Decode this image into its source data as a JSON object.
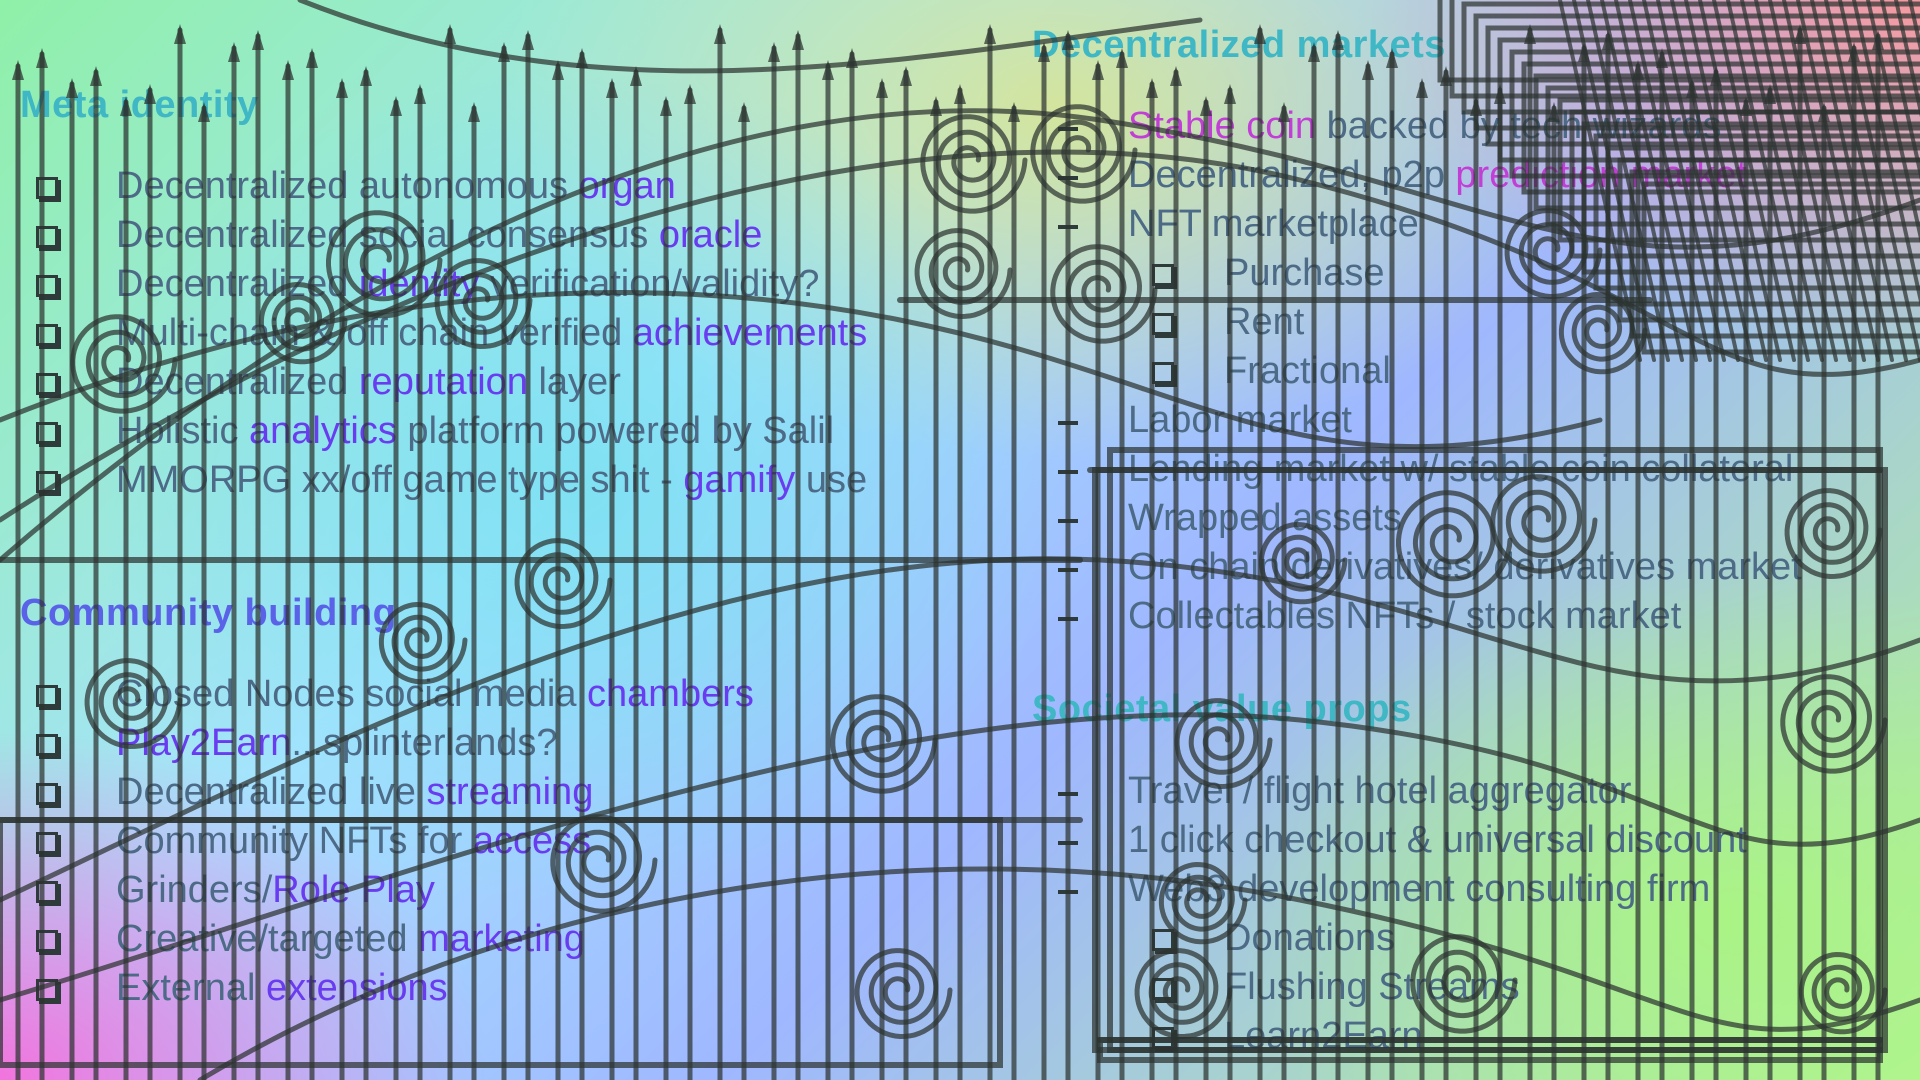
{
  "sections": {
    "meta_identity": {
      "title": "Meta identity",
      "items": [
        {
          "pre": "Decentralized autonomous ",
          "accent": "organ"
        },
        {
          "pre": "Decentralized social consensus ",
          "accent": "oracle"
        },
        {
          "pre": "Decentralized ",
          "accent": "identity",
          "post": " verification/validity?"
        },
        {
          "pre": "Multi-chain & off chain verified ",
          "accent": "achievements"
        },
        {
          "pre": "Decentralized ",
          "accent": "reputation",
          "post": " layer"
        },
        {
          "pre": "Holistic ",
          "accent": "analytics",
          "post": " platform powered by Salil"
        },
        {
          "pre": "MMORPG xx/off game type shit - ",
          "accent": "gamify",
          "post": " use"
        }
      ]
    },
    "community_building": {
      "title": "Community building",
      "items": [
        {
          "pre": "Closed Nodes social media ",
          "accent": "chambers"
        },
        {
          "pre": "",
          "accent": "Play2Earn",
          "post": "...splinterlands?"
        },
        {
          "pre": "Decentralized live ",
          "accent": "streaming"
        },
        {
          "pre": "Community NFTs for ",
          "accent": "access"
        },
        {
          "pre": "Grinders/",
          "accent": "Role Play"
        },
        {
          "pre": "Creative/targeted ",
          "accent": "marketing"
        },
        {
          "pre": "External ",
          "accent": "extensions"
        }
      ]
    },
    "decentralized_markets": {
      "title": "Decentralized markets",
      "items": [
        {
          "pre": "",
          "accent2": "Stable coin",
          "post": " backed by tech wizards"
        },
        {
          "pre": "Decentralized, p2p ",
          "accent2": "prediction market"
        },
        {
          "pre": "NFT marketplace"
        },
        {
          "pre": "Purchase",
          "sub": true
        },
        {
          "pre": "Rent",
          "sub": true
        },
        {
          "pre": "Fractional",
          "sub": true
        },
        {
          "pre": "Labor market"
        },
        {
          "pre": "Lending market w/ stable coin collateral"
        },
        {
          "pre": "Wrapped assets"
        },
        {
          "pre": "On chain derivatives/ derivatives market"
        },
        {
          "pre": "Collectables NFTs / stock market"
        }
      ]
    },
    "societal_value_props": {
      "title": "Societal value props",
      "items": [
        {
          "pre": "Travel / flight hotel aggregator"
        },
        {
          "pre": "1 click checkout & universal discount"
        },
        {
          "pre": "Web3 development consulting firm"
        },
        {
          "pre": "Donations",
          "sub": true
        },
        {
          "pre": "Flushing Streams",
          "sub": true
        },
        {
          "pre": "Learn2Earn",
          "sub": true
        }
      ]
    }
  },
  "colors": {
    "title": "#3fb7c4",
    "title_community": "#5a63e8",
    "text": "#4d6b86",
    "accent": "#6a3cf0",
    "accent2": "#c23fd6",
    "overlay_ink": "#2c3330"
  },
  "icons": {
    "checkbox": "checkbox-icon",
    "bullet": "dash-bullet-icon",
    "overlay": "wrought-iron-gate-overlay"
  }
}
